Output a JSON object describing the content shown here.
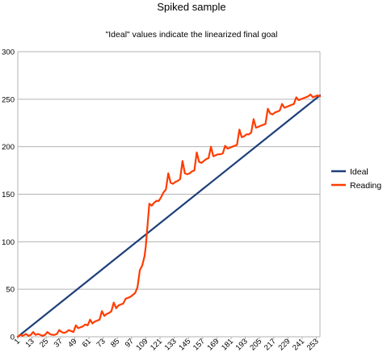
{
  "chart_data": {
    "type": "line",
    "title": "Spiked sample",
    "subtitle": "\"Ideal\" values indicate the linearized final goal",
    "xlabel": "",
    "ylabel": "",
    "ylim": [
      0,
      300
    ],
    "yticks": [
      0,
      50,
      100,
      150,
      200,
      250,
      300
    ],
    "xlim": [
      1,
      256
    ],
    "xticks": [
      1,
      13,
      25,
      37,
      49,
      61,
      73,
      85,
      97,
      109,
      121,
      133,
      145,
      157,
      169,
      181,
      193,
      205,
      217,
      229,
      241,
      253
    ],
    "grid": true,
    "legend_position": "right",
    "series": [
      {
        "name": "Ideal",
        "color": "#1f3f7a",
        "x": [
          1,
          256
        ],
        "y": [
          0,
          254
        ]
      },
      {
        "name": "Reading",
        "color": "#ff3c00",
        "x": [
          1,
          3,
          5,
          8,
          10,
          12,
          14,
          16,
          18,
          20,
          22,
          24,
          26,
          28,
          30,
          32,
          34,
          36,
          38,
          40,
          42,
          44,
          46,
          48,
          50,
          52,
          54,
          56,
          58,
          60,
          62,
          64,
          66,
          68,
          70,
          72,
          74,
          76,
          78,
          80,
          82,
          84,
          86,
          88,
          90,
          92,
          94,
          96,
          98,
          100,
          102,
          104,
          106,
          108,
          109,
          110,
          112,
          114,
          116,
          118,
          120,
          122,
          124,
          126,
          128,
          130,
          132,
          134,
          136,
          138,
          140,
          142,
          144,
          146,
          148,
          150,
          152,
          154,
          156,
          158,
          160,
          162,
          164,
          166,
          168,
          170,
          172,
          174,
          176,
          178,
          180,
          182,
          184,
          186,
          188,
          190,
          192,
          194,
          196,
          198,
          200,
          202,
          204,
          206,
          208,
          210,
          212,
          214,
          216,
          218,
          220,
          222,
          224,
          226,
          228,
          230,
          232,
          234,
          236,
          238,
          240,
          242,
          244,
          246,
          248,
          250,
          252,
          254,
          256
        ],
        "y": [
          0,
          2,
          1,
          3,
          1,
          2,
          5,
          2,
          3,
          2,
          1,
          2,
          5,
          3,
          2,
          2,
          3,
          7,
          5,
          4,
          5,
          7,
          6,
          5,
          12,
          9,
          10,
          11,
          13,
          12,
          18,
          14,
          16,
          17,
          18,
          27,
          22,
          24,
          25,
          27,
          36,
          30,
          33,
          34,
          35,
          40,
          41,
          42,
          44,
          46,
          52,
          70,
          75,
          85,
          95,
          110,
          140,
          138,
          141,
          143,
          143,
          147,
          152,
          155,
          172,
          162,
          161,
          163,
          164,
          166,
          185,
          172,
          171,
          172,
          174,
          175,
          194,
          184,
          183,
          185,
          187,
          188,
          200,
          190,
          191,
          192,
          192,
          193,
          201,
          198,
          199,
          200,
          201,
          202,
          218,
          210,
          211,
          213,
          213,
          215,
          229,
          220,
          221,
          222,
          223,
          224,
          240,
          235,
          234,
          236,
          237,
          238,
          245,
          241,
          242,
          243,
          244,
          245,
          252,
          249,
          250,
          251,
          252,
          253,
          255,
          252,
          253,
          254,
          253
        ]
      }
    ]
  }
}
